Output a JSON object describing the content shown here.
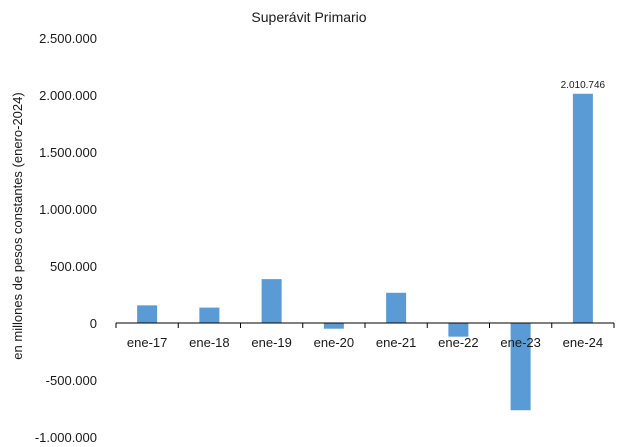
{
  "chart_data": {
    "type": "bar",
    "title": "Superávit Primario",
    "xlabel": "",
    "ylabel": "en millones de pesos constantes (enero-2024)",
    "categories": [
      "ene-17",
      "ene-18",
      "ene-19",
      "ene-20",
      "ene-21",
      "ene-22",
      "ene-23",
      "ene-24"
    ],
    "values": [
      155000,
      135000,
      385000,
      -50000,
      265000,
      -120000,
      -765000,
      2010746
    ],
    "data_labels": [
      {
        "category": "ene-24",
        "text": "2.010.746"
      }
    ],
    "ylim": [
      -1000000,
      2500000
    ],
    "yticks": [
      -1000000,
      -500000,
      0,
      500000,
      1000000,
      1500000,
      2000000,
      2500000
    ],
    "ytick_labels": [
      "-1.000.000",
      "-500.000",
      "0",
      "500.000",
      "1.000.000",
      "1.500.000",
      "2.000.000",
      "2.500.000"
    ],
    "grid": false,
    "legend": "none",
    "bar_color": "#5b9bd5",
    "axis_color": "#000000"
  }
}
